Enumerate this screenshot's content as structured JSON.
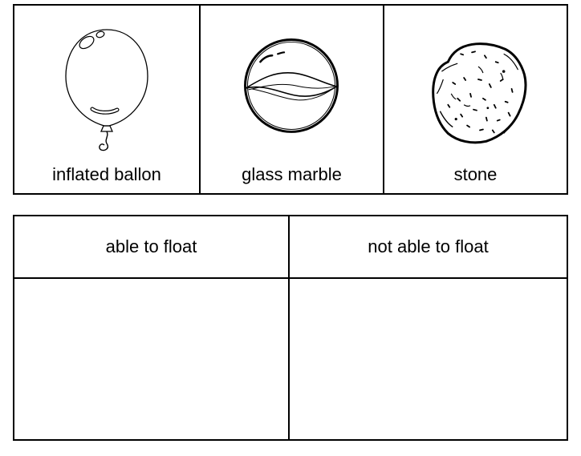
{
  "items": [
    {
      "label": "inflated ballon",
      "icon": "balloon-icon"
    },
    {
      "label": "glass marble",
      "icon": "marble-icon"
    },
    {
      "label": "stone",
      "icon": "stone-icon"
    }
  ],
  "table": {
    "columns": [
      {
        "header": "able to float"
      },
      {
        "header": "not able to float"
      }
    ]
  }
}
